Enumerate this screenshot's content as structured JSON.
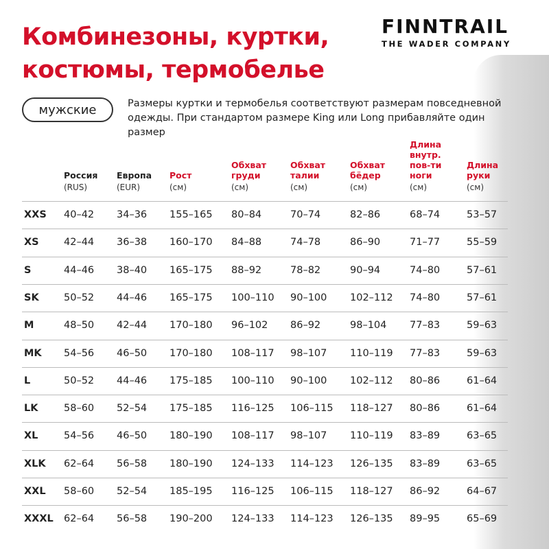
{
  "title_lines": [
    "Комбинезоны, куртки,",
    "костюмы, термобелье"
  ],
  "brand": {
    "name": "FINNTRAIL",
    "tagline": "THE WADER COMPANY"
  },
  "category_pill": "мужские",
  "note_lines": [
    "Размеры куртки и термобелья соответствуют размерам повседневной",
    "одежды. При стандартом размере King или Long прибавляйте один размер"
  ],
  "columns": [
    {
      "label": [
        "Россия"
      ],
      "unit": "(RUS)",
      "highlight": false
    },
    {
      "label": [
        "Европа"
      ],
      "unit": "(EUR)",
      "highlight": false
    },
    {
      "label": [
        "Рост"
      ],
      "unit": "(см)",
      "highlight": true
    },
    {
      "label": [
        "Обхват",
        "груди"
      ],
      "unit": "(см)",
      "highlight": true
    },
    {
      "label": [
        "Обхват",
        "талии"
      ],
      "unit": "(см)",
      "highlight": true
    },
    {
      "label": [
        "Обхват",
        "бёдер"
      ],
      "unit": "(см)",
      "highlight": true
    },
    {
      "label": [
        "Длина",
        "внутр.",
        "пов-ти",
        "ноги"
      ],
      "unit": "(см)",
      "highlight": true
    },
    {
      "label": [
        "Длина",
        "руки"
      ],
      "unit": "(см)",
      "highlight": true
    }
  ],
  "rows": [
    [
      "XXS",
      "40–42",
      "34–36",
      "155–165",
      "80–84",
      "70–74",
      "82–86",
      "68–74",
      "53–57"
    ],
    [
      "XS",
      "42–44",
      "36–38",
      "160–170",
      "84–88",
      "74–78",
      "86–90",
      "71–77",
      "55–59"
    ],
    [
      "S",
      "44–46",
      "38–40",
      "165–175",
      "88–92",
      "78–82",
      "90–94",
      "74–80",
      "57–61"
    ],
    [
      "SK",
      "50–52",
      "44–46",
      "165–175",
      "100–110",
      "90–100",
      "102–112",
      "74–80",
      "57–61"
    ],
    [
      "M",
      "48–50",
      "42–44",
      "170–180",
      "96–102",
      "86–92",
      "98–104",
      "77–83",
      "59–63"
    ],
    [
      "MK",
      "54–56",
      "46–50",
      "170–180",
      "108–117",
      "98–107",
      "110–119",
      "77–83",
      "59–63"
    ],
    [
      "L",
      "50–52",
      "44–46",
      "175–185",
      "100–110",
      "90–100",
      "102–112",
      "80–86",
      "61–64"
    ],
    [
      "LK",
      "58–60",
      "52–54",
      "175–185",
      "116–125",
      "106–115",
      "118–127",
      "80–86",
      "61–64"
    ],
    [
      "XL",
      "54–56",
      "46–50",
      "180–190",
      "108–117",
      "98–107",
      "110–119",
      "83–89",
      "63–65"
    ],
    [
      "XLK",
      "62–64",
      "56–58",
      "180–190",
      "124–133",
      "114–123",
      "126–135",
      "83–89",
      "63–65"
    ],
    [
      "XXL",
      "58–60",
      "52–54",
      "185–195",
      "116–125",
      "106–115",
      "118–127",
      "86–92",
      "64–67"
    ],
    [
      "XXXL",
      "62–64",
      "56–58",
      "190–200",
      "124–133",
      "114–123",
      "126–135",
      "89–95",
      "65–69"
    ]
  ],
  "colors": {
    "accent": "#d3102a",
    "text": "#222222"
  }
}
